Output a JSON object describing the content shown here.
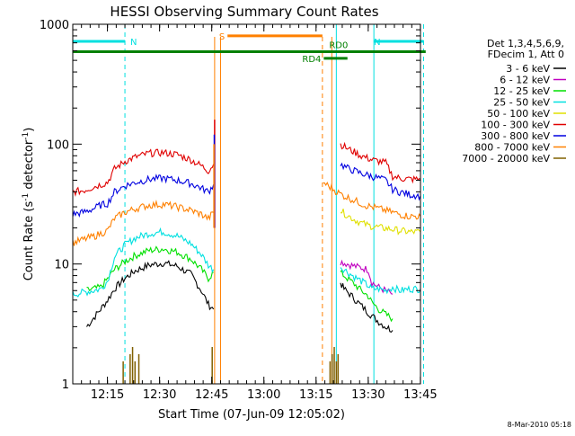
{
  "chart_data": {
    "type": "line",
    "title": "HESSI Observing Summary Count Rates",
    "xlabel": "Start Time (07-Jun-09 12:05:02)",
    "ylabel_main": "Count Rate (s",
    "ylabel_sup1": "-1",
    "ylabel_mid": " detector",
    "ylabel_sup2": "-1",
    "ylabel_end": ")",
    "x_axis": {
      "start_min": 0,
      "end_min": 100,
      "origin_time": "12:05:02"
    },
    "y_axis": {
      "scale": "log",
      "range": [
        1,
        1000
      ]
    },
    "x_ticks": [
      {
        "label": "12:15",
        "value": 9.97
      },
      {
        "label": "12:30",
        "value": 24.97
      },
      {
        "label": "12:45",
        "value": 39.97
      },
      {
        "label": "13:00",
        "value": 54.97
      },
      {
        "label": "13:15",
        "value": 69.97
      },
      {
        "label": "13:30",
        "value": 84.97
      },
      {
        "label": "13:45",
        "value": 99.97
      }
    ],
    "y_ticks": [
      {
        "label": "1",
        "value": 1
      },
      {
        "label": "10",
        "value": 10
      },
      {
        "label": "100",
        "value": 100
      },
      {
        "label": "1000",
        "value": 1000
      }
    ],
    "legend": {
      "header": [
        "Det 1,3,4,5,6,9,",
        "FDecim 1, Att 0"
      ],
      "placement": "right"
    },
    "series": [
      {
        "name": "3 - 6 keV",
        "color": "#000000",
        "segments": [
          {
            "x": [
              4,
              8,
              10,
              12,
              15,
              18,
              22,
              26,
              30,
              34,
              37,
              39,
              40.5
            ],
            "y": [
              3.0,
              4.2,
              5.0,
              6.2,
              7.6,
              8.8,
              9.8,
              10.2,
              9.6,
              8.2,
              6.0,
              4.6,
              4.2
            ]
          },
          {
            "x": [
              77,
              78,
              80,
              82,
              84,
              86,
              88,
              90,
              92
            ],
            "y": [
              7.0,
              6.2,
              5.5,
              4.8,
              4.2,
              3.7,
              3.3,
              3.0,
              2.8
            ]
          }
        ]
      },
      {
        "name": "6 - 12 keV",
        "color": "#c000c0",
        "segments": [
          {
            "x": [
              77,
              79,
              81,
              83,
              85,
              86,
              88,
              90,
              92
            ],
            "y": [
              10.5,
              10.0,
              9.6,
              9.3,
              9.0,
              7.0,
              6.4,
              6.0,
              5.6
            ]
          }
        ]
      },
      {
        "name": "12 - 25 keV",
        "color": "#00e000",
        "segments": [
          {
            "x": [
              4,
              8,
              10,
              12,
              15,
              18,
              22,
              26,
              30,
              34,
              37,
              39,
              40.5
            ],
            "y": [
              6.0,
              6.4,
              7.5,
              9.0,
              10.5,
              11.8,
              13.0,
              13.4,
              12.6,
              11.0,
              9.0,
              7.6,
              8.5
            ]
          },
          {
            "x": [
              77,
              79,
              81,
              83,
              85,
              86,
              88,
              90,
              92
            ],
            "y": [
              8.5,
              7.6,
              6.8,
              6.0,
              5.4,
              4.8,
              4.2,
              3.8,
              3.5
            ]
          }
        ]
      },
      {
        "name": "25 - 50 keV",
        "color": "#00e0e0",
        "segments": [
          {
            "x": [
              0,
              3,
              6,
              8,
              10,
              12,
              15,
              18,
              22,
              26,
              30,
              34,
              37,
              39,
              40.5
            ],
            "y": [
              5.6,
              5.8,
              6.0,
              6.2,
              7.2,
              11.5,
              14.5,
              16.5,
              18.0,
              18.6,
              17.2,
              14.8,
              12.0,
              9.8,
              9.0
            ]
          },
          {
            "x": [
              77,
              79,
              81,
              83,
              85,
              86,
              88,
              90,
              92,
              94,
              97,
              100
            ],
            "y": [
              9.5,
              8.6,
              7.8,
              7.2,
              6.6,
              6.2,
              6.2,
              6.0,
              6.4,
              6.0,
              6.2,
              6.2
            ]
          }
        ]
      },
      {
        "name": "50 - 100 keV",
        "color": "#e0e000",
        "segments": [
          {
            "x": [
              77,
              79,
              81,
              83,
              85,
              87,
              89,
              92,
              94,
              97,
              100
            ],
            "y": [
              28.0,
              25.5,
              23.5,
              22.0,
              21.0,
              20.5,
              20.0,
              19.5,
              19.0,
              18.5,
              18.5
            ]
          }
        ]
      },
      {
        "name": "100 - 300 keV",
        "color": "#e00000",
        "segments": [
          {
            "x": [
              0,
              3,
              6,
              8,
              10,
              12,
              15,
              18,
              22,
              26,
              30,
              34,
              37,
              39,
              40.5
            ],
            "y": [
              40,
              41,
              44,
              46,
              48,
              62,
              72,
              78,
              84,
              85,
              82,
              74,
              66,
              60,
              68
            ]
          },
          {
            "x": [
              77,
              79,
              81,
              83,
              85,
              86,
              88,
              90,
              92,
              94,
              97,
              100
            ],
            "y": [
              100,
              92,
              86,
              80,
              76,
              74,
              72,
              70,
              54,
              52,
              51,
              51
            ]
          }
        ]
      },
      {
        "name": "300 - 800 keV",
        "color": "#0000e0",
        "segments": [
          {
            "x": [
              0,
              3,
              6,
              8,
              10,
              12,
              15,
              18,
              22,
              26,
              30,
              34,
              37,
              39,
              40.5
            ],
            "y": [
              26,
              27,
              29,
              31,
              32,
              40,
              45,
              48,
              51,
              52,
              50,
              47,
              43,
              40,
              46
            ]
          },
          {
            "x": [
              77,
              79,
              81,
              83,
              85,
              86,
              88,
              90,
              92,
              94,
              97,
              100
            ],
            "y": [
              68,
              63,
              60,
              57,
              55,
              54,
              52,
              50,
              42,
              40,
              38,
              37
            ]
          }
        ]
      },
      {
        "name": "800 - 7000 keV",
        "color": "#ff8000",
        "segments": [
          {
            "x": [
              0,
              3,
              6,
              8,
              10,
              12,
              15,
              18,
              22,
              26,
              30,
              34,
              37,
              39,
              40.5
            ],
            "y": [
              15,
              16,
              17,
              18,
              19,
              24,
              27,
              29,
              31,
              31.5,
              30,
              28,
              26,
              24,
              27
            ]
          },
          {
            "x": [
              72,
              74,
              76,
              78,
              80,
              82,
              84,
              86,
              88,
              90,
              92,
              94,
              97,
              100
            ],
            "y": [
              48,
              44,
              40,
              37,
              35,
              33,
              31,
              30,
              29,
              28,
              27,
              26,
              25,
              25
            ]
          }
        ]
      },
      {
        "name": "7000 - 20000 keV",
        "color": "#806000",
        "segments": []
      }
    ],
    "spikes": [
      {
        "x": 40.8,
        "y": 160,
        "color": "#e00000"
      },
      {
        "x": 40.7,
        "y": 120,
        "color": "#0000e0"
      },
      {
        "x": 40.6,
        "y": 100,
        "color": "#ff8000"
      }
    ],
    "orange_verticals": [
      {
        "x": 40.8,
        "style": "solid"
      },
      {
        "x": 42.5,
        "style": "solid"
      },
      {
        "x": 71.8,
        "style": "dashed"
      },
      {
        "x": 74.5,
        "style": "solid"
      }
    ],
    "cyan_verticals": [
      {
        "x": 0,
        "style": "solid"
      },
      {
        "x": 15,
        "style": "dashed"
      },
      {
        "x": 75.8,
        "style": "solid"
      },
      {
        "x": 86.6,
        "style": "solid"
      },
      {
        "x": 100.9,
        "style": "dashed"
      }
    ],
    "brown_blips": [
      14.5,
      16.5,
      17.2,
      17.9,
      19.0,
      40.1,
      74.0,
      74.6,
      75.2,
      75.8,
      76.3
    ],
    "flag_bars": [
      {
        "label": "N",
        "color": "#00e0e0",
        "x1": 0,
        "x2": 15,
        "y": 720,
        "label_pos": "right-of-end"
      },
      {
        "label": "N",
        "color": "#00e0e0",
        "x1": 86.6,
        "x2": 100.9,
        "y": 720,
        "label_pos": "none"
      },
      {
        "label": "S",
        "color": "#ff8000",
        "x1": 44.5,
        "x2": 71.8,
        "y": 800,
        "label_pos": "left-of-start"
      },
      {
        "label": "",
        "color": "#008000",
        "x1": 0,
        "x2": 101.5,
        "y": 590,
        "label_pos": "none"
      },
      {
        "label": "RD0",
        "color": "#008000",
        "x1": 71.8,
        "x2": 71.8,
        "y": 590,
        "label_pos": "above-end"
      },
      {
        "label": "RD4",
        "color": "#008000",
        "x1": 72.2,
        "x2": 79,
        "y": 520,
        "label_pos": "left-of-start"
      }
    ]
  },
  "footer": {
    "date_stamp": "8-Mar-2010 05:18"
  }
}
